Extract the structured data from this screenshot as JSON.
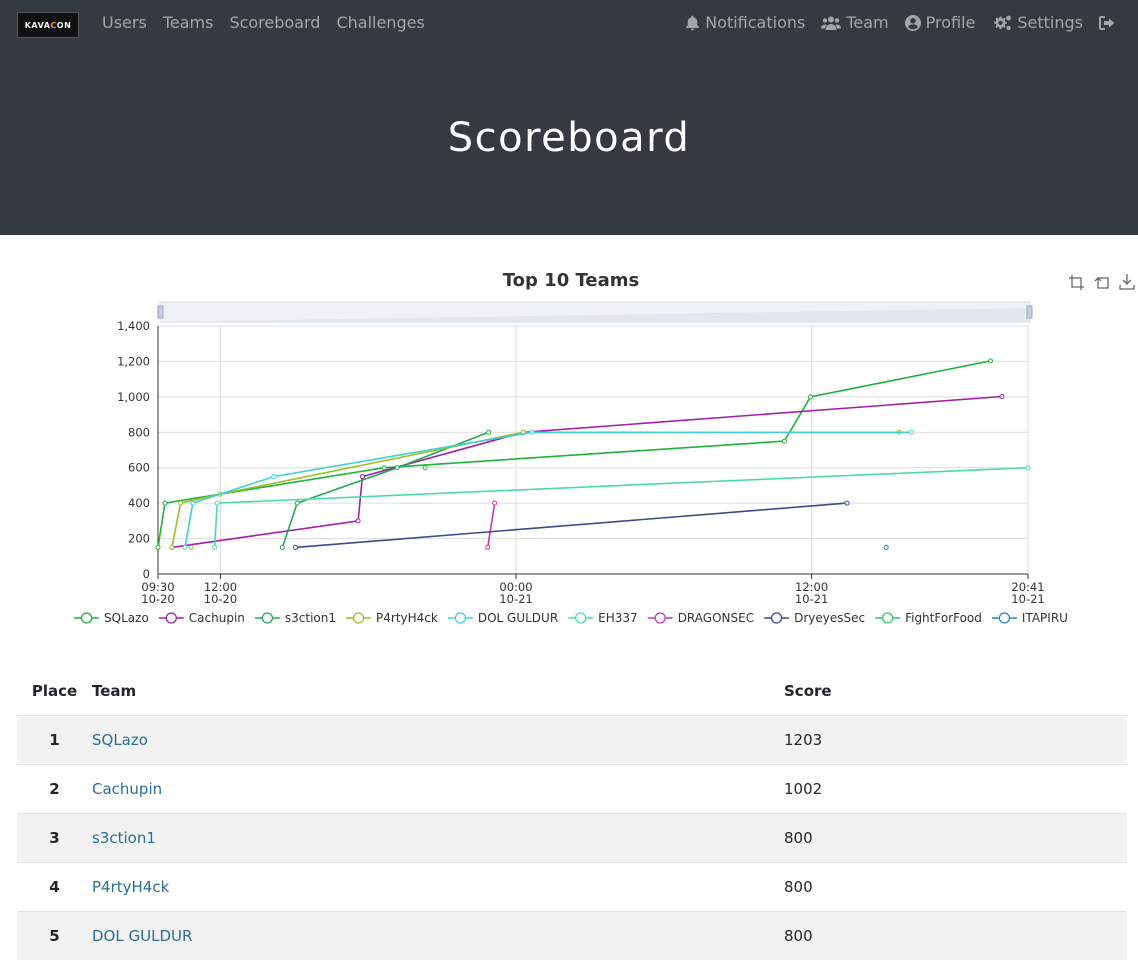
{
  "nav": {
    "brand_text_1": "KAVA",
    "brand_text_2": "C",
    "brand_text_3": "ON",
    "left": [
      "Users",
      "Teams",
      "Scoreboard",
      "Challenges"
    ],
    "right": [
      {
        "label": "Notifications",
        "icon": "bell-icon"
      },
      {
        "label": "Team",
        "icon": "users-icon"
      },
      {
        "label": "Profile",
        "icon": "user-circle-icon"
      },
      {
        "label": "Settings",
        "icon": "cogs-icon"
      },
      {
        "label": "",
        "icon": "sign-out-icon"
      }
    ]
  },
  "page": {
    "title": "Scoreboard"
  },
  "chart_data": {
    "type": "line",
    "title": "Top 10 Teams",
    "ylim": [
      0,
      1400
    ],
    "yticks": [
      0,
      200,
      400,
      600,
      800,
      1000,
      1200,
      1400
    ],
    "ytick_labels": [
      "0",
      "200",
      "400",
      "600",
      "800",
      "1,000",
      "1,200",
      "1,400"
    ],
    "xlim": [
      0,
      1.0
    ],
    "xticks": [
      {
        "x": 0.0,
        "label": [
          "09:30",
          "10-20"
        ]
      },
      {
        "x": 0.0718,
        "label": [
          "12:00",
          "10-20"
        ]
      },
      {
        "x": 0.4115,
        "label": [
          "00:00",
          "10-21"
        ]
      },
      {
        "x": 0.7513,
        "label": [
          "12:00",
          "10-21"
        ]
      },
      {
        "x": 1.0,
        "label": [
          "20:41",
          "10-21"
        ]
      }
    ],
    "grid": true,
    "legend_position": "bottom",
    "series": [
      {
        "name": "SQLazo",
        "color": "#20b23a",
        "points": [
          [
            0.0,
            150
          ],
          [
            0.008,
            400
          ],
          [
            0.26,
            600
          ],
          [
            0.72,
            750
          ],
          [
            0.75,
            1000
          ],
          [
            0.957,
            1203
          ]
        ]
      },
      {
        "name": "Cachupin",
        "color": "#a020a8",
        "points": [
          [
            0.016,
            150
          ],
          [
            0.23,
            300
          ],
          [
            0.235,
            550
          ],
          [
            0.42,
            800
          ],
          [
            0.97,
            1002
          ]
        ]
      },
      {
        "name": "s3ction1",
        "color": "#26a85a",
        "points": [
          [
            0.143,
            150
          ],
          [
            0.16,
            400
          ],
          [
            0.275,
            600
          ],
          [
            0.38,
            800
          ]
        ]
      },
      {
        "name": "P4rtyH4ck",
        "color": "#9bbf2a",
        "points": [
          [
            0.016,
            150
          ],
          [
            0.026,
            400
          ],
          [
            0.071,
            450
          ],
          [
            0.42,
            800
          ],
          [
            0.852,
            800
          ]
        ]
      },
      {
        "name": "DOL GULDUR",
        "color": "#3fcfd8",
        "points": [
          [
            0.031,
            150
          ],
          [
            0.04,
            400
          ],
          [
            0.133,
            550
          ],
          [
            0.43,
            800
          ],
          [
            0.866,
            800
          ]
        ]
      },
      {
        "name": "EH337",
        "color": "#4fd8b0",
        "points": [
          [
            0.065,
            150
          ],
          [
            0.068,
            400
          ],
          [
            1.0,
            600
          ]
        ]
      },
      {
        "name": "DRAGONSEC",
        "color": "#c438b0",
        "points": [
          [
            0.379,
            150
          ],
          [
            0.387,
            400
          ]
        ]
      },
      {
        "name": "DryeyesSec",
        "color": "#3c4a8c",
        "points": [
          [
            0.158,
            150
          ],
          [
            0.792,
            400
          ]
        ]
      },
      {
        "name": "FightForFood",
        "color": "#34c06a",
        "points": []
      },
      {
        "name": "ITAPIRU",
        "color": "#2a8ab0",
        "points": [
          [
            0.837,
            150
          ]
        ]
      }
    ],
    "extra_points": [
      {
        "series": "P4rtyH4ck",
        "x": 0.038,
        "y": 150
      },
      {
        "series": "s3ction1",
        "x": 0.307,
        "y": 600
      }
    ]
  },
  "table": {
    "headers": {
      "place": "Place",
      "team": "Team",
      "score": "Score"
    },
    "rows": [
      {
        "place": "1",
        "team": "SQLazo",
        "score": "1203"
      },
      {
        "place": "2",
        "team": "Cachupin",
        "score": "1002"
      },
      {
        "place": "3",
        "team": "s3ction1",
        "score": "800"
      },
      {
        "place": "4",
        "team": "P4rtyH4ck",
        "score": "800"
      },
      {
        "place": "5",
        "team": "DOL GULDUR",
        "score": "800"
      }
    ]
  }
}
